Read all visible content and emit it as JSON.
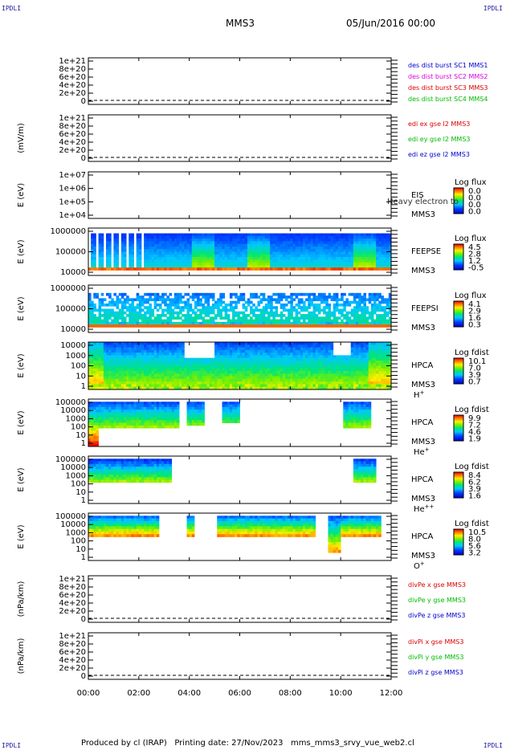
{
  "header": {
    "corner_tl": "IPDLI",
    "corner_tr": "IPDLI",
    "corner_bl": "IPDLI",
    "corner_br": "IPDLI",
    "spacecraft": "MMS3",
    "datetime": "05/Jun/2016 00:00"
  },
  "footer": {
    "text": "Produced by cl (IRAP)   Printing date: 27/Nov/2023   mms_mms3_srvy_vue_web2.cl"
  },
  "colors": {
    "mms1": "#0000cc",
    "mms2": "#dd00dd",
    "mms3": "#dd0000",
    "mms4": "#00bb00",
    "x": "#dd0000",
    "y": "#00bb00",
    "z": "#0000cc"
  },
  "chart_data": {
    "type": "heatmap",
    "x_ticks": [
      "00:00",
      "02:00",
      "04:00",
      "06:00",
      "08:00",
      "10:00",
      "12:00"
    ],
    "panels": [
      {
        "kind": "line",
        "ylabel": "",
        "yticks": [
          "1e+21",
          "8e+20",
          "6e+20",
          "4e+20",
          "2e+20",
          "0"
        ],
        "legend": [
          {
            "text": "des dist burst SC1 MMS1",
            "color": "mms1"
          },
          {
            "text": "des dist burst SC2 MMS2",
            "color": "mms2"
          },
          {
            "text": "des dist burst SC3 MMS3",
            "color": "mms3"
          },
          {
            "text": "des dist burst SC4 MMS4",
            "color": "mms4"
          }
        ]
      },
      {
        "kind": "line",
        "ylabel": "(mV/m)",
        "yticks": [
          "1e+21",
          "8e+20",
          "6e+20",
          "4e+20",
          "2e+20",
          "0"
        ],
        "legend": [
          {
            "text": "edi ex gse l2 MMS3",
            "color": "x"
          },
          {
            "text": "edi ey gse l2 MMS3",
            "color": "y"
          },
          {
            "text": "edi ez gse l2 MMS3",
            "color": "z"
          }
        ]
      },
      {
        "kind": "spec",
        "ylabel": "E (eV)",
        "yticks": [
          "1e+07",
          "1e+06",
          "1e+05",
          "1e+04"
        ],
        "labels": [
          "EIS",
          "MMS3"
        ],
        "overlay": "Heavy electron to",
        "cbar_title": "Log flux",
        "cbar_ticks": [
          "0.0",
          "0.0",
          "0.0",
          "0.0"
        ],
        "empty": true
      },
      {
        "kind": "spec",
        "ylabel": "E (eV)",
        "yticks": [
          "1000000",
          "100000",
          "10000"
        ],
        "labels": [
          "FEEPSE",
          "MMS3"
        ],
        "cbar_title": "Log flux",
        "cbar_ticks": [
          "4.5",
          "2.8",
          "1.2",
          "-0.5"
        ],
        "empty": false
      },
      {
        "kind": "spec",
        "ylabel": "E (eV)",
        "yticks": [
          "1000000",
          "100000",
          "10000"
        ],
        "labels": [
          "FEEPSI",
          "MMS3"
        ],
        "cbar_title": "Log flux",
        "cbar_ticks": [
          "4.1",
          "2.9",
          "1.6",
          "0.3"
        ],
        "empty": false
      },
      {
        "kind": "spec",
        "ylabel": "E (eV)",
        "yticks": [
          "10000",
          "1000",
          "100",
          "10",
          "1"
        ],
        "labels": [
          "HPCA",
          "MMS3",
          "H+"
        ],
        "cbar_title": "Log fdist",
        "cbar_ticks": [
          "10.1",
          "7.0",
          "3.9",
          "0.7"
        ],
        "empty": false
      },
      {
        "kind": "spec",
        "ylabel": "E (eV)",
        "yticks": [
          "100000",
          "10000",
          "1000",
          "100",
          "10",
          "1"
        ],
        "labels": [
          "HPCA",
          "MMS3",
          "He+"
        ],
        "cbar_title": "Log fdist",
        "cbar_ticks": [
          "9.9",
          "7.2",
          "4.6",
          "1.9"
        ],
        "empty": false
      },
      {
        "kind": "spec",
        "ylabel": "E (eV)",
        "yticks": [
          "100000",
          "10000",
          "1000",
          "100",
          "10",
          "1"
        ],
        "labels": [
          "HPCA",
          "MMS3",
          "He++"
        ],
        "cbar_title": "Log fdist",
        "cbar_ticks": [
          "8.4",
          "6.2",
          "3.9",
          "1.6"
        ],
        "empty": false
      },
      {
        "kind": "spec",
        "ylabel": "E (eV)",
        "yticks": [
          "100000",
          "10000",
          "1000",
          "100",
          "10",
          "1"
        ],
        "labels": [
          "HPCA",
          "MMS3",
          "O+"
        ],
        "cbar_title": "Log fdist",
        "cbar_ticks": [
          "10.5",
          "8.0",
          "5.6",
          "3.2"
        ],
        "empty": false
      },
      {
        "kind": "line",
        "ylabel": "(nPa/km)",
        "yticks": [
          "1e+21",
          "8e+20",
          "6e+20",
          "4e+20",
          "2e+20",
          "0"
        ],
        "legend": [
          {
            "text": "divPe x gse MMS3",
            "color": "x"
          },
          {
            "text": "divPe y gse MMS3",
            "color": "y"
          },
          {
            "text": "divPe z gse MMS3",
            "color": "z"
          }
        ]
      },
      {
        "kind": "line",
        "ylabel": "(nPa/km)",
        "yticks": [
          "1e+21",
          "8e+20",
          "6e+20",
          "4e+20",
          "2e+20",
          "0"
        ],
        "legend": [
          {
            "text": "divPi x gse MMS3",
            "color": "x"
          },
          {
            "text": "divPi y gse MMS3",
            "color": "y"
          },
          {
            "text": "divPi z gse MMS3",
            "color": "z"
          }
        ]
      }
    ]
  }
}
